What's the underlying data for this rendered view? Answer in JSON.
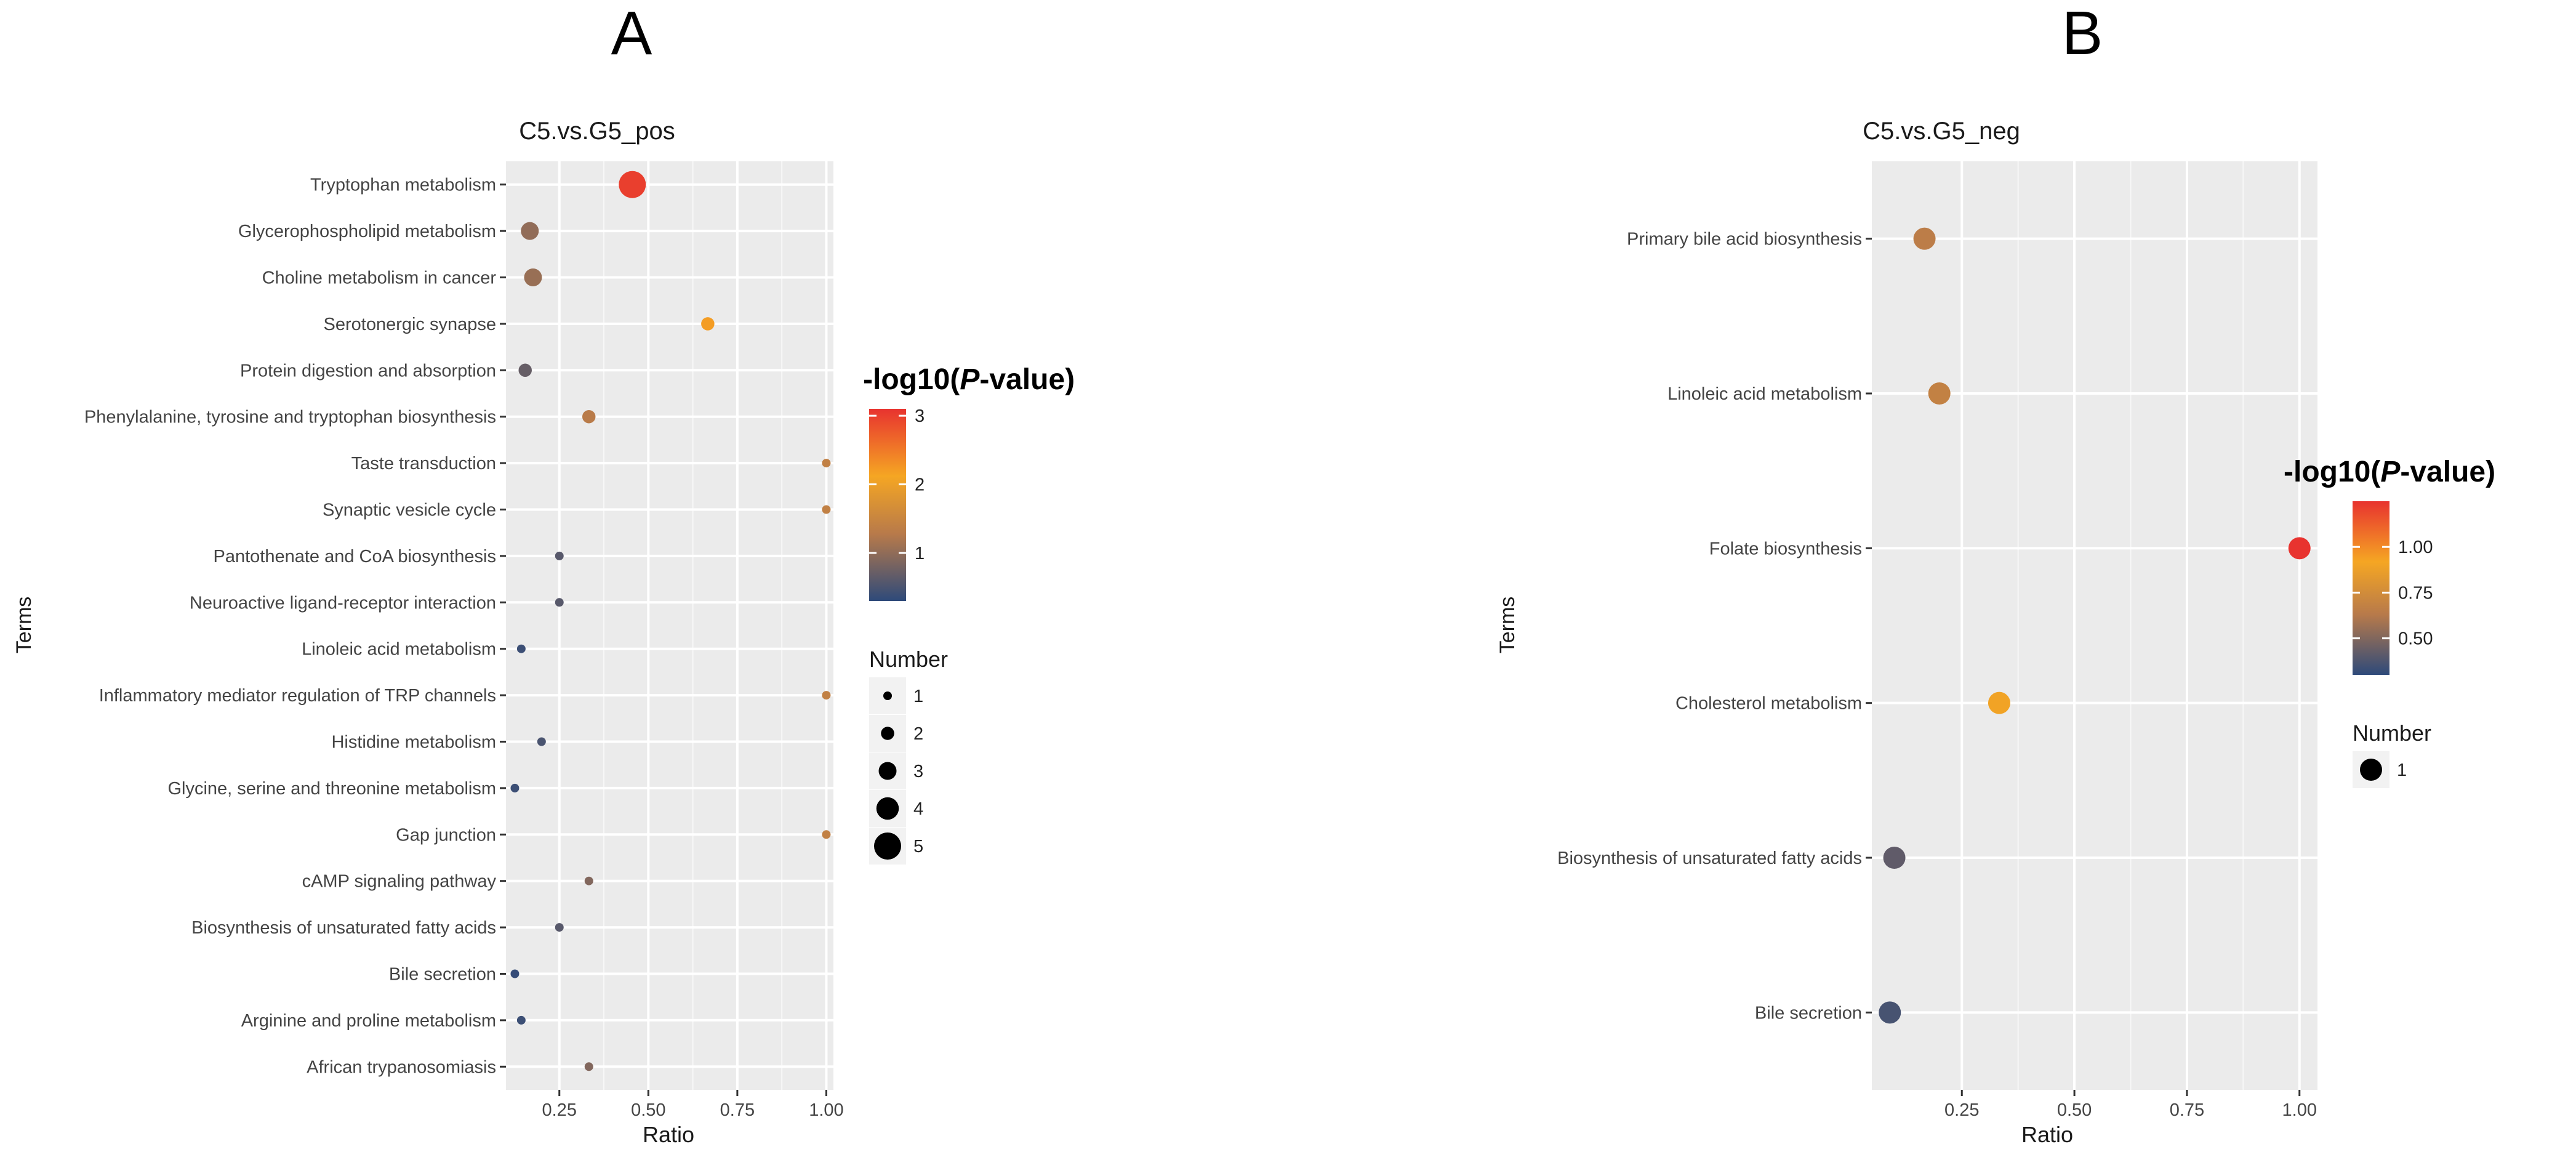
{
  "panels": [
    {
      "letter": "A",
      "title": "C5.vs.G5_pos",
      "xlabel": "Ratio",
      "ylabel": "Terms",
      "color_legend": {
        "title_prefix": "-log10(",
        "title_italic": "P",
        "title_suffix": "-value)",
        "breaks": [
          1,
          2,
          3
        ],
        "break_labels": [
          "1",
          "2",
          "3"
        ]
      },
      "size_legend": {
        "title": "Number",
        "breaks": [
          1,
          2,
          3,
          4,
          5
        ],
        "break_labels": [
          "1",
          "2",
          "3",
          "4",
          "5"
        ]
      }
    },
    {
      "letter": "B",
      "title": "C5.vs.G5_neg",
      "xlabel": "Ratio",
      "ylabel": "Terms",
      "color_legend": {
        "title_prefix": "-log10(",
        "title_italic": "P",
        "title_suffix": "-value)",
        "breaks": [
          0.5,
          0.75,
          1.0
        ],
        "break_labels": [
          "0.50",
          "0.75",
          "1.00"
        ]
      },
      "size_legend": {
        "title": "Number",
        "breaks": [
          1
        ],
        "break_labels": [
          "1"
        ]
      }
    }
  ],
  "chart_data": [
    {
      "type": "scatter",
      "title": "C5.vs.G5_pos",
      "xlabel": "Ratio",
      "ylabel": "Terms",
      "xlim": [
        0.1,
        1.02
      ],
      "xticks": [
        0.25,
        0.5,
        0.75,
        1.0
      ],
      "xtick_labels": [
        "0.25",
        "0.50",
        "0.75",
        "1.00"
      ],
      "grid": true,
      "color_scale": {
        "min": 0.3,
        "max": 3.1,
        "colors": [
          "#2E4A7A",
          "#B87A4A",
          "#F5A623",
          "#E8332F"
        ]
      },
      "size_scale": {
        "min": 1,
        "max": 5
      },
      "legend_position": "right",
      "terms": [
        "Tryptophan metabolism",
        "Glycerophospholipid metabolism",
        "Choline metabolism in cancer",
        "Serotonergic synapse",
        "Protein digestion and absorption",
        "Phenylalanine, tyrosine and tryptophan biosynthesis",
        "Taste transduction",
        "Synaptic vesicle cycle",
        "Pantothenate and CoA biosynthesis",
        "Neuroactive ligand-receptor interaction",
        "Linoleic acid metabolism",
        "Inflammatory mediator regulation of TRP channels",
        "Histidine metabolism",
        "Glycine, serine and threonine metabolism",
        "Gap junction",
        "cAMP signaling pathway",
        "Biosynthesis of unsaturated fatty acids",
        "Bile secretion",
        "Arginine and proline metabolism",
        "African trypanosomiasis"
      ],
      "ratio": [
        0.455,
        0.167,
        0.176,
        0.667,
        0.154,
        0.333,
        1.0,
        1.0,
        0.25,
        0.25,
        0.143,
        1.0,
        0.2,
        0.125,
        1.0,
        0.333,
        0.25,
        0.125,
        0.143,
        0.333
      ],
      "number": [
        5,
        3,
        3,
        2,
        2,
        2,
        1,
        1,
        1,
        1,
        1,
        1,
        1,
        1,
        1,
        1,
        1,
        1,
        1,
        1
      ],
      "neg_log10_p": [
        3.0,
        1.0,
        1.05,
        2.2,
        0.7,
        1.3,
        1.4,
        1.4,
        0.6,
        0.6,
        0.4,
        1.4,
        0.5,
        0.4,
        1.4,
        0.9,
        0.6,
        0.35,
        0.4,
        0.9
      ]
    },
    {
      "type": "scatter",
      "title": "C5.vs.G5_neg",
      "xlabel": "Ratio",
      "ylabel": "Terms",
      "xlim": [
        0.05,
        1.04
      ],
      "xticks": [
        0.25,
        0.5,
        0.75,
        1.0
      ],
      "xtick_labels": [
        "0.25",
        "0.50",
        "0.75",
        "1.00"
      ],
      "grid": true,
      "color_scale": {
        "min": 0.3,
        "max": 1.25,
        "colors": [
          "#2E4A7A",
          "#B87A4A",
          "#F5A623",
          "#E8332F"
        ]
      },
      "size_scale": {
        "min": 1,
        "max": 1
      },
      "legend_position": "right",
      "terms": [
        "Primary bile acid biosynthesis",
        "Linoleic acid metabolism",
        "Folate biosynthesis",
        "Cholesterol metabolism",
        "Biosynthesis of unsaturated fatty acids",
        "Bile secretion"
      ],
      "ratio": [
        0.167,
        0.2,
        1.0,
        0.333,
        0.1,
        0.09
      ],
      "number": [
        1,
        1,
        1,
        1,
        1,
        1
      ],
      "neg_log10_p": [
        0.65,
        0.68,
        1.25,
        0.9,
        0.42,
        0.36
      ]
    }
  ]
}
